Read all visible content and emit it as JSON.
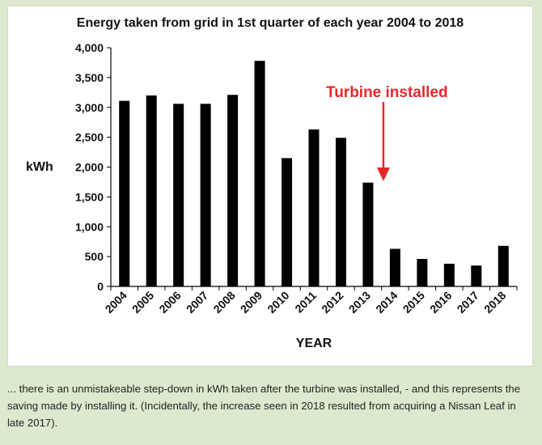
{
  "chart_data": {
    "type": "bar",
    "title": "Energy taken from grid in 1st quarter of each year 2004 to 2018",
    "xlabel": "YEAR",
    "ylabel": "kWh",
    "categories": [
      "2004",
      "2005",
      "2006",
      "2007",
      "2008",
      "2009",
      "2010",
      "2011",
      "2012",
      "2013",
      "2014",
      "2015",
      "2016",
      "2017",
      "2018"
    ],
    "values": [
      3110,
      3200,
      3060,
      3060,
      3210,
      3780,
      2150,
      2630,
      2490,
      1740,
      630,
      460,
      380,
      350,
      680
    ],
    "ylim": [
      0,
      4000
    ],
    "yticks": [
      "0",
      "500",
      "1,000",
      "1,500",
      "2,000",
      "2,500",
      "3,000",
      "3,500",
      "4,000"
    ],
    "ytick_values": [
      0,
      500,
      1000,
      1500,
      2000,
      2500,
      3000,
      3500,
      4000
    ],
    "grid": false,
    "bar_color": "#000000",
    "annotation": {
      "text": "Turbine installed",
      "color": "#e8262a",
      "pointing_to_category": "2013"
    }
  },
  "caption": "... there is an unmistakeable step-down in kWh taken after the turbine was installed, - and this represents the saving made by installing it. (Incidentally, the increase seen in 2018 resulted from acquiring a Nissan Leaf in late 2017)."
}
